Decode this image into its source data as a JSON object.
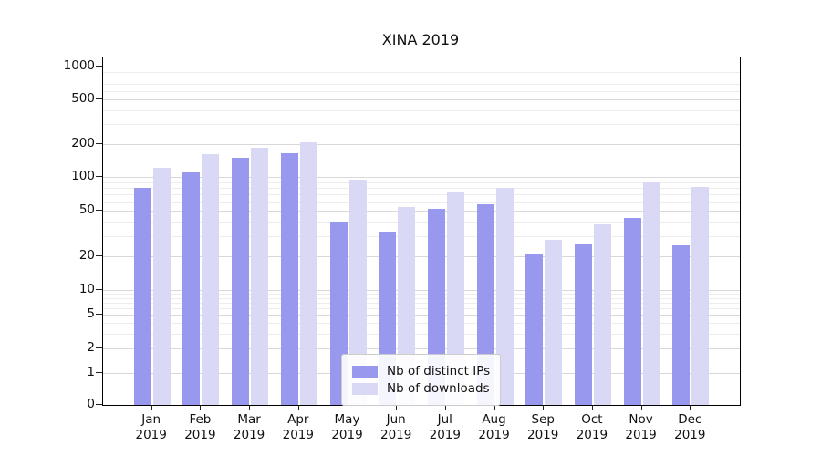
{
  "chart_data": {
    "type": "bar",
    "title": "XINA 2019",
    "categories": [
      "Jan 2019",
      "Feb 2019",
      "Mar 2019",
      "Apr 2019",
      "May 2019",
      "Jun 2019",
      "Jul 2019",
      "Aug 2019",
      "Sep 2019",
      "Oct 2019",
      "Nov 2019",
      "Dec 2019"
    ],
    "series": [
      {
        "name": "Nb of distinct IPs",
        "color": "#9898ee",
        "values": [
          80,
          110,
          150,
          165,
          40,
          33,
          52,
          57,
          21,
          26,
          43,
          25
        ]
      },
      {
        "name": "Nb of downloads",
        "color": "#d9d9f6",
        "values": [
          120,
          160,
          185,
          205,
          95,
          54,
          75,
          80,
          28,
          38,
          90,
          82
        ]
      }
    ],
    "yscale": "symlog",
    "yticks": [
      0,
      1,
      2,
      5,
      10,
      20,
      50,
      100,
      200,
      500,
      1000
    ],
    "yticks_minor": [
      3,
      4,
      6,
      7,
      8,
      9,
      30,
      40,
      60,
      70,
      80,
      90,
      300,
      400,
      600,
      700,
      800,
      900
    ],
    "ylim": [
      0,
      1000
    ],
    "grid": true,
    "legend_position": "lower center"
  }
}
